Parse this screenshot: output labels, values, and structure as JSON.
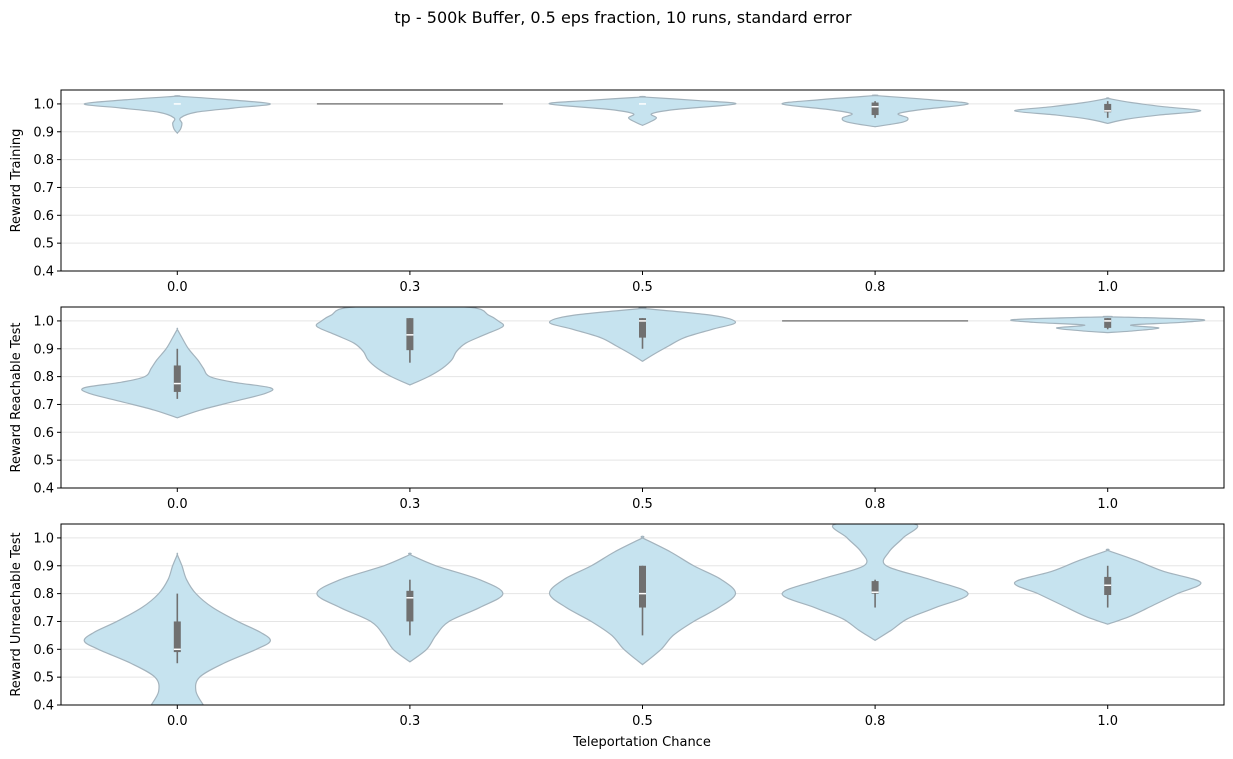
{
  "chart_data": {
    "type": "violin",
    "title": "tp - 500k Buffer, 0.5 eps fraction, 10 runs, standard error",
    "xlabel": "Teleportation Chance",
    "categories": [
      "0.0",
      "0.3",
      "0.5",
      "0.8",
      "1.0"
    ],
    "ylim": [
      0.4,
      1.05
    ],
    "yticks": [
      "0.4",
      "0.5",
      "0.6",
      "0.7",
      "0.8",
      "0.9",
      "1.0"
    ],
    "grid": "y",
    "colors": {
      "violin_fill": "#c6e3ef",
      "violin_edge": "#a3b3bd",
      "box": "#707070",
      "median": "#ffffff",
      "axis": "#000000",
      "grid": "#e5e5e5"
    },
    "panels": [
      {
        "ylabel": "Reward Training",
        "violins": [
          {
            "category": "0.0",
            "profile": [
              [
                0.895,
                0.0
              ],
              [
                0.91,
                0.035
              ],
              [
                0.93,
                0.05
              ],
              [
                0.95,
                0.035
              ],
              [
                0.97,
                0.2
              ],
              [
                0.985,
                0.6
              ],
              [
                1.0,
                1.0
              ],
              [
                1.015,
                0.55
              ],
              [
                1.028,
                0.0
              ]
            ],
            "q1": 1.0,
            "median": 1.0,
            "q3": 1.0,
            "min": 1.0,
            "max": 1.0
          },
          {
            "category": "0.3",
            "profile": [
              [
                1.0,
                0.0
              ],
              [
                1.0,
                1.0
              ],
              [
                1.0,
                0.0
              ]
            ],
            "q1": 1.0,
            "median": 1.0,
            "q3": 1.0,
            "min": 1.0,
            "max": 1.0
          },
          {
            "category": "0.5",
            "profile": [
              [
                0.923,
                0.0
              ],
              [
                0.935,
                0.08
              ],
              [
                0.95,
                0.15
              ],
              [
                0.965,
                0.1
              ],
              [
                0.98,
                0.35
              ],
              [
                1.0,
                1.0
              ],
              [
                1.012,
                0.6
              ],
              [
                1.025,
                0.0
              ]
            ],
            "q1": 1.0,
            "median": 1.0,
            "q3": 1.0,
            "min": 1.0,
            "max": 1.0
          },
          {
            "category": "0.8",
            "profile": [
              [
                0.918,
                0.0
              ],
              [
                0.935,
                0.3
              ],
              [
                0.95,
                0.35
              ],
              [
                0.965,
                0.25
              ],
              [
                0.98,
                0.5
              ],
              [
                1.0,
                1.0
              ],
              [
                1.015,
                0.6
              ],
              [
                1.03,
                0.0
              ]
            ],
            "q1": 0.96,
            "median": 0.99,
            "q3": 1.005,
            "min": 0.95,
            "max": 1.01
          },
          {
            "category": "1.0",
            "profile": [
              [
                0.93,
                0.0
              ],
              [
                0.945,
                0.2
              ],
              [
                0.96,
                0.55
              ],
              [
                0.975,
                1.0
              ],
              [
                0.99,
                0.6
              ],
              [
                1.005,
                0.25
              ],
              [
                1.02,
                0.0
              ]
            ],
            "q1": 0.97,
            "median": 0.975,
            "q3": 1.0,
            "min": 0.95,
            "max": 1.01
          }
        ]
      },
      {
        "ylabel": "Reward Reachable Test",
        "violins": [
          {
            "category": "0.0",
            "profile": [
              [
                0.652,
                0.0
              ],
              [
                0.68,
                0.25
              ],
              [
                0.71,
                0.6
              ],
              [
                0.74,
                0.95
              ],
              [
                0.76,
                1.0
              ],
              [
                0.78,
                0.6
              ],
              [
                0.8,
                0.35
              ],
              [
                0.83,
                0.28
              ],
              [
                0.86,
                0.22
              ],
              [
                0.9,
                0.12
              ],
              [
                0.94,
                0.05
              ],
              [
                0.97,
                0.0
              ]
            ],
            "q1": 0.745,
            "median": 0.775,
            "q3": 0.84,
            "min": 0.72,
            "max": 0.9
          },
          {
            "category": "0.3",
            "profile": [
              [
                0.77,
                0.0
              ],
              [
                0.8,
                0.2
              ],
              [
                0.83,
                0.35
              ],
              [
                0.86,
                0.45
              ],
              [
                0.89,
                0.5
              ],
              [
                0.92,
                0.6
              ],
              [
                0.95,
                0.8
              ],
              [
                0.98,
                1.0
              ],
              [
                1.0,
                0.95
              ],
              [
                1.02,
                0.85
              ],
              [
                1.05,
                0.6
              ]
            ],
            "q1": 0.895,
            "median": 0.95,
            "q3": 1.01,
            "min": 0.85,
            "max": 1.01
          },
          {
            "category": "0.5",
            "profile": [
              [
                0.855,
                0.0
              ],
              [
                0.88,
                0.12
              ],
              [
                0.91,
                0.28
              ],
              [
                0.94,
                0.45
              ],
              [
                0.97,
                0.75
              ],
              [
                0.995,
                1.0
              ],
              [
                1.02,
                0.75
              ],
              [
                1.045,
                0.0
              ]
            ],
            "q1": 0.94,
            "median": 1.0,
            "q3": 1.01,
            "min": 0.9,
            "max": 1.01
          },
          {
            "category": "0.8",
            "profile": [
              [
                1.0,
                0.0
              ],
              [
                1.0,
                1.0
              ],
              [
                1.0,
                0.0
              ]
            ],
            "q1": 1.0,
            "median": 1.0,
            "q3": 1.0,
            "min": 1.0,
            "max": 1.0
          },
          {
            "category": "1.0",
            "profile": [
              [
                0.958,
                0.0
              ],
              [
                0.965,
                0.3
              ],
              [
                0.975,
                0.55
              ],
              [
                0.985,
                0.25
              ],
              [
                0.995,
                0.8
              ],
              [
                1.005,
                1.0
              ],
              [
                1.015,
                0.0
              ]
            ],
            "q1": 0.975,
            "median": 1.0,
            "q3": 1.01,
            "min": 0.97,
            "max": 1.01
          }
        ]
      },
      {
        "ylabel": "Reward Unreachable Test",
        "violins": [
          {
            "category": "0.0",
            "profile": [
              [
                0.4,
                0.28
              ],
              [
                0.45,
                0.2
              ],
              [
                0.5,
                0.24
              ],
              [
                0.55,
                0.5
              ],
              [
                0.6,
                0.85
              ],
              [
                0.63,
                1.0
              ],
              [
                0.66,
                0.9
              ],
              [
                0.7,
                0.65
              ],
              [
                0.75,
                0.38
              ],
              [
                0.8,
                0.2
              ],
              [
                0.85,
                0.1
              ],
              [
                0.9,
                0.05
              ],
              [
                0.94,
                0.0
              ]
            ],
            "q1": 0.59,
            "median": 0.6,
            "q3": 0.7,
            "min": 0.55,
            "max": 0.8
          },
          {
            "category": "0.3",
            "profile": [
              [
                0.555,
                0.0
              ],
              [
                0.6,
                0.18
              ],
              [
                0.65,
                0.28
              ],
              [
                0.7,
                0.42
              ],
              [
                0.75,
                0.75
              ],
              [
                0.8,
                1.0
              ],
              [
                0.85,
                0.75
              ],
              [
                0.9,
                0.28
              ],
              [
                0.94,
                0.0
              ]
            ],
            "q1": 0.7,
            "median": 0.785,
            "q3": 0.81,
            "min": 0.65,
            "max": 0.85
          },
          {
            "category": "0.5",
            "profile": [
              [
                0.545,
                0.0
              ],
              [
                0.6,
                0.2
              ],
              [
                0.65,
                0.33
              ],
              [
                0.7,
                0.55
              ],
              [
                0.75,
                0.82
              ],
              [
                0.8,
                1.0
              ],
              [
                0.85,
                0.85
              ],
              [
                0.9,
                0.55
              ],
              [
                0.95,
                0.3
              ],
              [
                1.0,
                0.0
              ]
            ],
            "q1": 0.75,
            "median": 0.8,
            "q3": 0.9,
            "min": 0.65,
            "max": 0.9
          },
          {
            "category": "0.8",
            "profile": [
              [
                0.632,
                0.0
              ],
              [
                0.67,
                0.18
              ],
              [
                0.71,
                0.35
              ],
              [
                0.75,
                0.65
              ],
              [
                0.8,
                1.0
              ],
              [
                0.85,
                0.6
              ],
              [
                0.9,
                0.12
              ],
              [
                0.95,
                0.15
              ],
              [
                1.0,
                0.3
              ],
              [
                1.05,
                0.42
              ]
            ],
            "q1": 0.8,
            "median": 0.805,
            "q3": 0.845,
            "min": 0.75,
            "max": 0.85
          },
          {
            "category": "1.0",
            "profile": [
              [
                0.69,
                0.0
              ],
              [
                0.72,
                0.25
              ],
              [
                0.76,
                0.5
              ],
              [
                0.8,
                0.75
              ],
              [
                0.84,
                1.0
              ],
              [
                0.88,
                0.6
              ],
              [
                0.92,
                0.3
              ],
              [
                0.955,
                0.0
              ]
            ],
            "q1": 0.795,
            "median": 0.83,
            "q3": 0.86,
            "min": 0.75,
            "max": 0.9
          }
        ]
      }
    ]
  }
}
